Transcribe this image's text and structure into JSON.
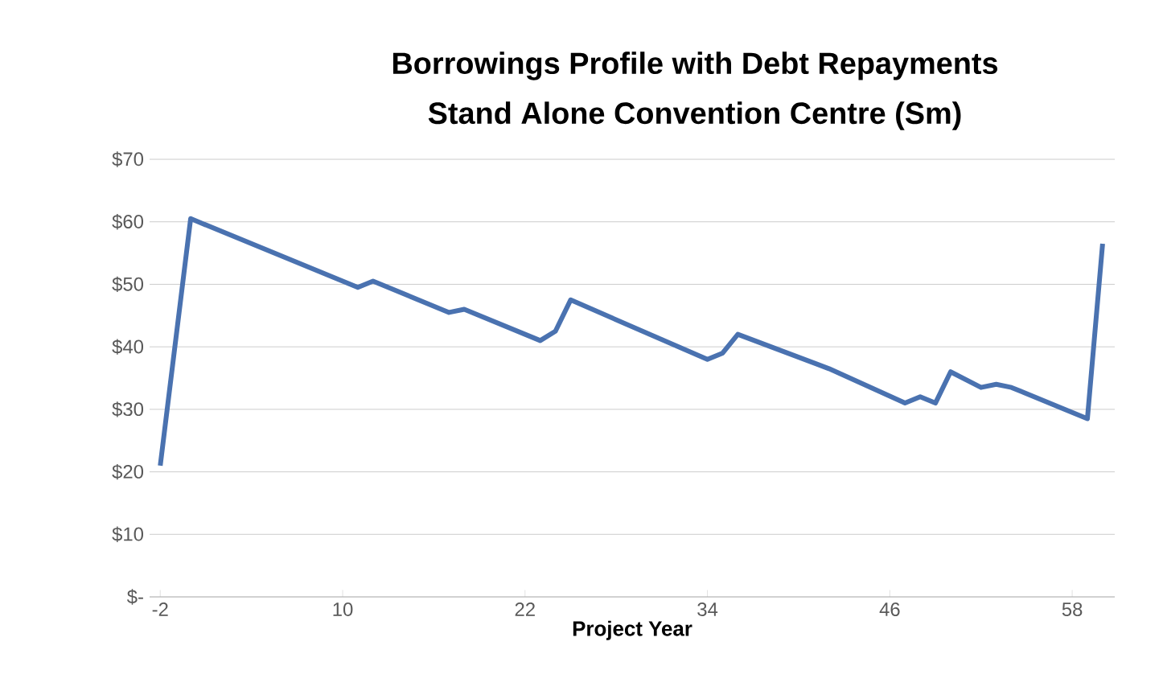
{
  "chart_data": {
    "type": "line",
    "title": "Borrowings Profile with Debt Repayments",
    "subtitle": "Stand Alone Convention Centre (Sm)",
    "xlabel": "Project Year",
    "x": [
      -2,
      0,
      11,
      12,
      17,
      18,
      23,
      24,
      25,
      34,
      35,
      36,
      42,
      47,
      48,
      49,
      50,
      52,
      53,
      54,
      59,
      60
    ],
    "series": [
      {
        "color": "#4a72b0",
        "values": [
          21,
          60.5,
          49.5,
          50.5,
          45.5,
          46,
          41,
          42.5,
          47.5,
          38,
          39,
          42,
          36.5,
          31,
          32,
          31,
          36,
          33.5,
          34,
          33.5,
          28.5,
          56.5
        ]
      }
    ],
    "xlim": [
      -2.7,
      60.8
    ],
    "xticks": [
      -2,
      10,
      22,
      34,
      46,
      58
    ],
    "ylim": [
      0,
      70
    ],
    "yticks": [
      {
        "value": 0,
        "label": "$-"
      },
      {
        "value": 10,
        "label": "$10"
      },
      {
        "value": 20,
        "label": "$20"
      },
      {
        "value": 30,
        "label": "$30"
      },
      {
        "value": 40,
        "label": "$40"
      },
      {
        "value": 50,
        "label": "$50"
      },
      {
        "value": 60,
        "label": "$60"
      },
      {
        "value": 70,
        "label": "$70"
      }
    ],
    "grid": "y",
    "marker": "none",
    "line_style": "solid"
  }
}
